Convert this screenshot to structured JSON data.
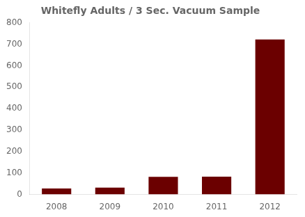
{
  "chart_data": {
    "type": "bar",
    "title": "Whitefly Adults / 3 Sec. Vacuum Sample",
    "categories": [
      "2008",
      "2009",
      "2010",
      "2011",
      "2012"
    ],
    "values": [
      28,
      32,
      82,
      83,
      722
    ],
    "color": "#6B0000",
    "ylim": [
      0,
      800
    ],
    "yticks": [
      0,
      100,
      200,
      300,
      400,
      500,
      600,
      700,
      800
    ],
    "grid": false
  }
}
